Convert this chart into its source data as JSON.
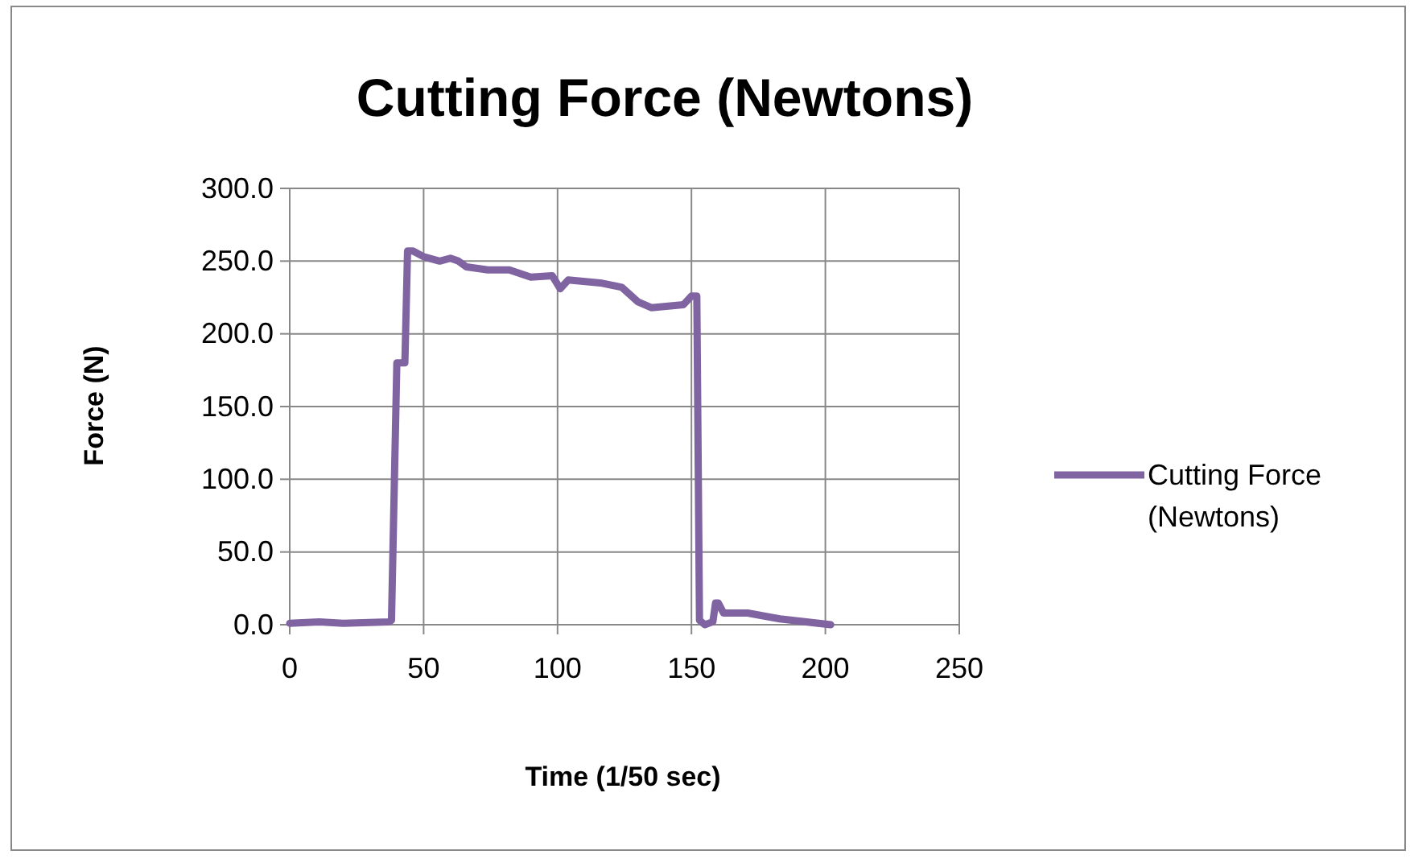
{
  "chart_data": {
    "type": "line",
    "title": "Cutting Force (Newtons)",
    "xlabel": "Time (1/50 sec)",
    "ylabel": "Force (N)",
    "xlim": [
      0,
      250
    ],
    "xticks": [
      0,
      50,
      100,
      150,
      200,
      250
    ],
    "ylim": [
      0,
      300
    ],
    "yticks": [
      {
        "value": 0,
        "label": "0.0"
      },
      {
        "value": 50,
        "label": "50.0"
      },
      {
        "value": 100,
        "label": "100.0"
      },
      {
        "value": 150,
        "label": "150.0"
      },
      {
        "value": 200,
        "label": "200.0"
      },
      {
        "value": 250,
        "label": "250.0"
      },
      {
        "value": 300,
        "label": "300.0"
      }
    ],
    "grid": true,
    "legend": "right",
    "marker": "none",
    "series": [
      {
        "name": "Cutting Force (Newtons)",
        "color": "#8064a2",
        "x": [
          0,
          11,
          20,
          37,
          38,
          40,
          43,
          44,
          46,
          50,
          56,
          60,
          63,
          66,
          74,
          82,
          90,
          98,
          101,
          104,
          116,
          124,
          130,
          135,
          147,
          150,
          152,
          153,
          155,
          158,
          159,
          160,
          162,
          171,
          183,
          202
        ],
        "values": [
          1,
          2,
          1,
          2,
          3,
          180,
          180,
          257,
          257,
          253,
          250,
          252,
          250,
          246,
          244,
          244,
          239,
          240,
          231,
          237,
          235,
          232,
          222,
          218,
          220,
          226,
          226,
          3,
          0,
          2,
          15,
          15,
          8,
          8,
          4,
          0
        ]
      }
    ]
  }
}
